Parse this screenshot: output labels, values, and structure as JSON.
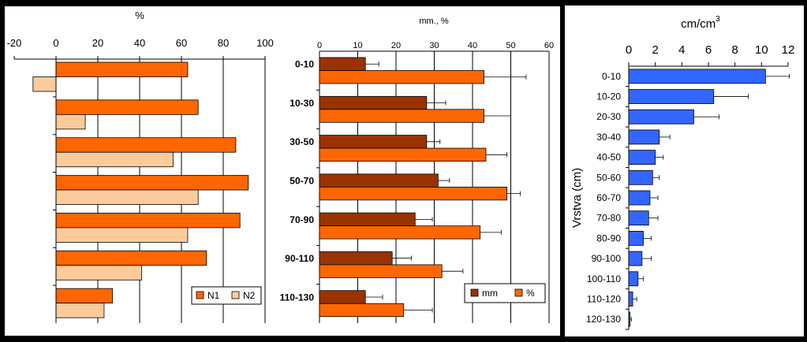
{
  "chart_data": [
    {
      "type": "bar",
      "orientation": "horizontal",
      "title": "%",
      "xlim": [
        -20,
        100
      ],
      "ticks": [
        -20,
        0,
        20,
        40,
        60,
        80,
        100
      ],
      "categories": [
        "",
        "",
        "",
        "",
        "",
        "",
        ""
      ],
      "series": [
        {
          "name": "N1",
          "color": "#FF6600",
          "values": [
            63,
            68,
            86,
            92,
            88,
            72,
            27
          ]
        },
        {
          "name": "N2",
          "color": "#FCCB9B",
          "values": [
            -11,
            14,
            56,
            68,
            63,
            41,
            23
          ]
        }
      ],
      "grid": true,
      "legend": "bottom-right"
    },
    {
      "type": "bar",
      "orientation": "horizontal",
      "title": "mm., %",
      "xlim": [
        0,
        60
      ],
      "ticks": [
        0,
        10,
        20,
        30,
        40,
        50,
        60
      ],
      "categories": [
        "0-10",
        "10-30",
        "30-50",
        "50-70",
        "70-90",
        "90-110",
        "110-130"
      ],
      "series": [
        {
          "name": "mm",
          "color": "#993300",
          "values": [
            12,
            28,
            28,
            31,
            25,
            19,
            12
          ],
          "errors": [
            3.5,
            5,
            3.5,
            3,
            4.5,
            5,
            4.5
          ]
        },
        {
          "name": "%",
          "color": "#FF6600",
          "values": [
            43,
            43,
            43.5,
            49,
            42,
            32,
            22
          ],
          "errors": [
            11,
            7,
            5.5,
            3.5,
            5.5,
            5.5,
            7.5
          ]
        }
      ],
      "grid": true,
      "legend": "bottom-right"
    },
    {
      "type": "bar",
      "orientation": "horizontal",
      "title": "cm/cm",
      "title_superscript": "3",
      "ylabel": "Vrstva (cm)",
      "xlim": [
        0,
        12
      ],
      "ticks": [
        0,
        2,
        4,
        6,
        8,
        10,
        12
      ],
      "categories": [
        "0-10",
        "10-20",
        "20-30",
        "30-40",
        "40-50",
        "50-60",
        "60-70",
        "70-80",
        "80-90",
        "90-100",
        "100-110",
        "110-120",
        "120-130"
      ],
      "series": [
        {
          "color": "#3366FF",
          "values": [
            10.3,
            6.4,
            4.9,
            2.3,
            2.0,
            1.8,
            1.6,
            1.5,
            1.1,
            1.0,
            0.7,
            0.3,
            0.1
          ],
          "errors": [
            1.8,
            2.6,
            1.9,
            0.8,
            0.6,
            0.5,
            0.6,
            0.7,
            0.6,
            0.7,
            0.4,
            0.3,
            0.1
          ]
        }
      ],
      "grid": false
    }
  ]
}
